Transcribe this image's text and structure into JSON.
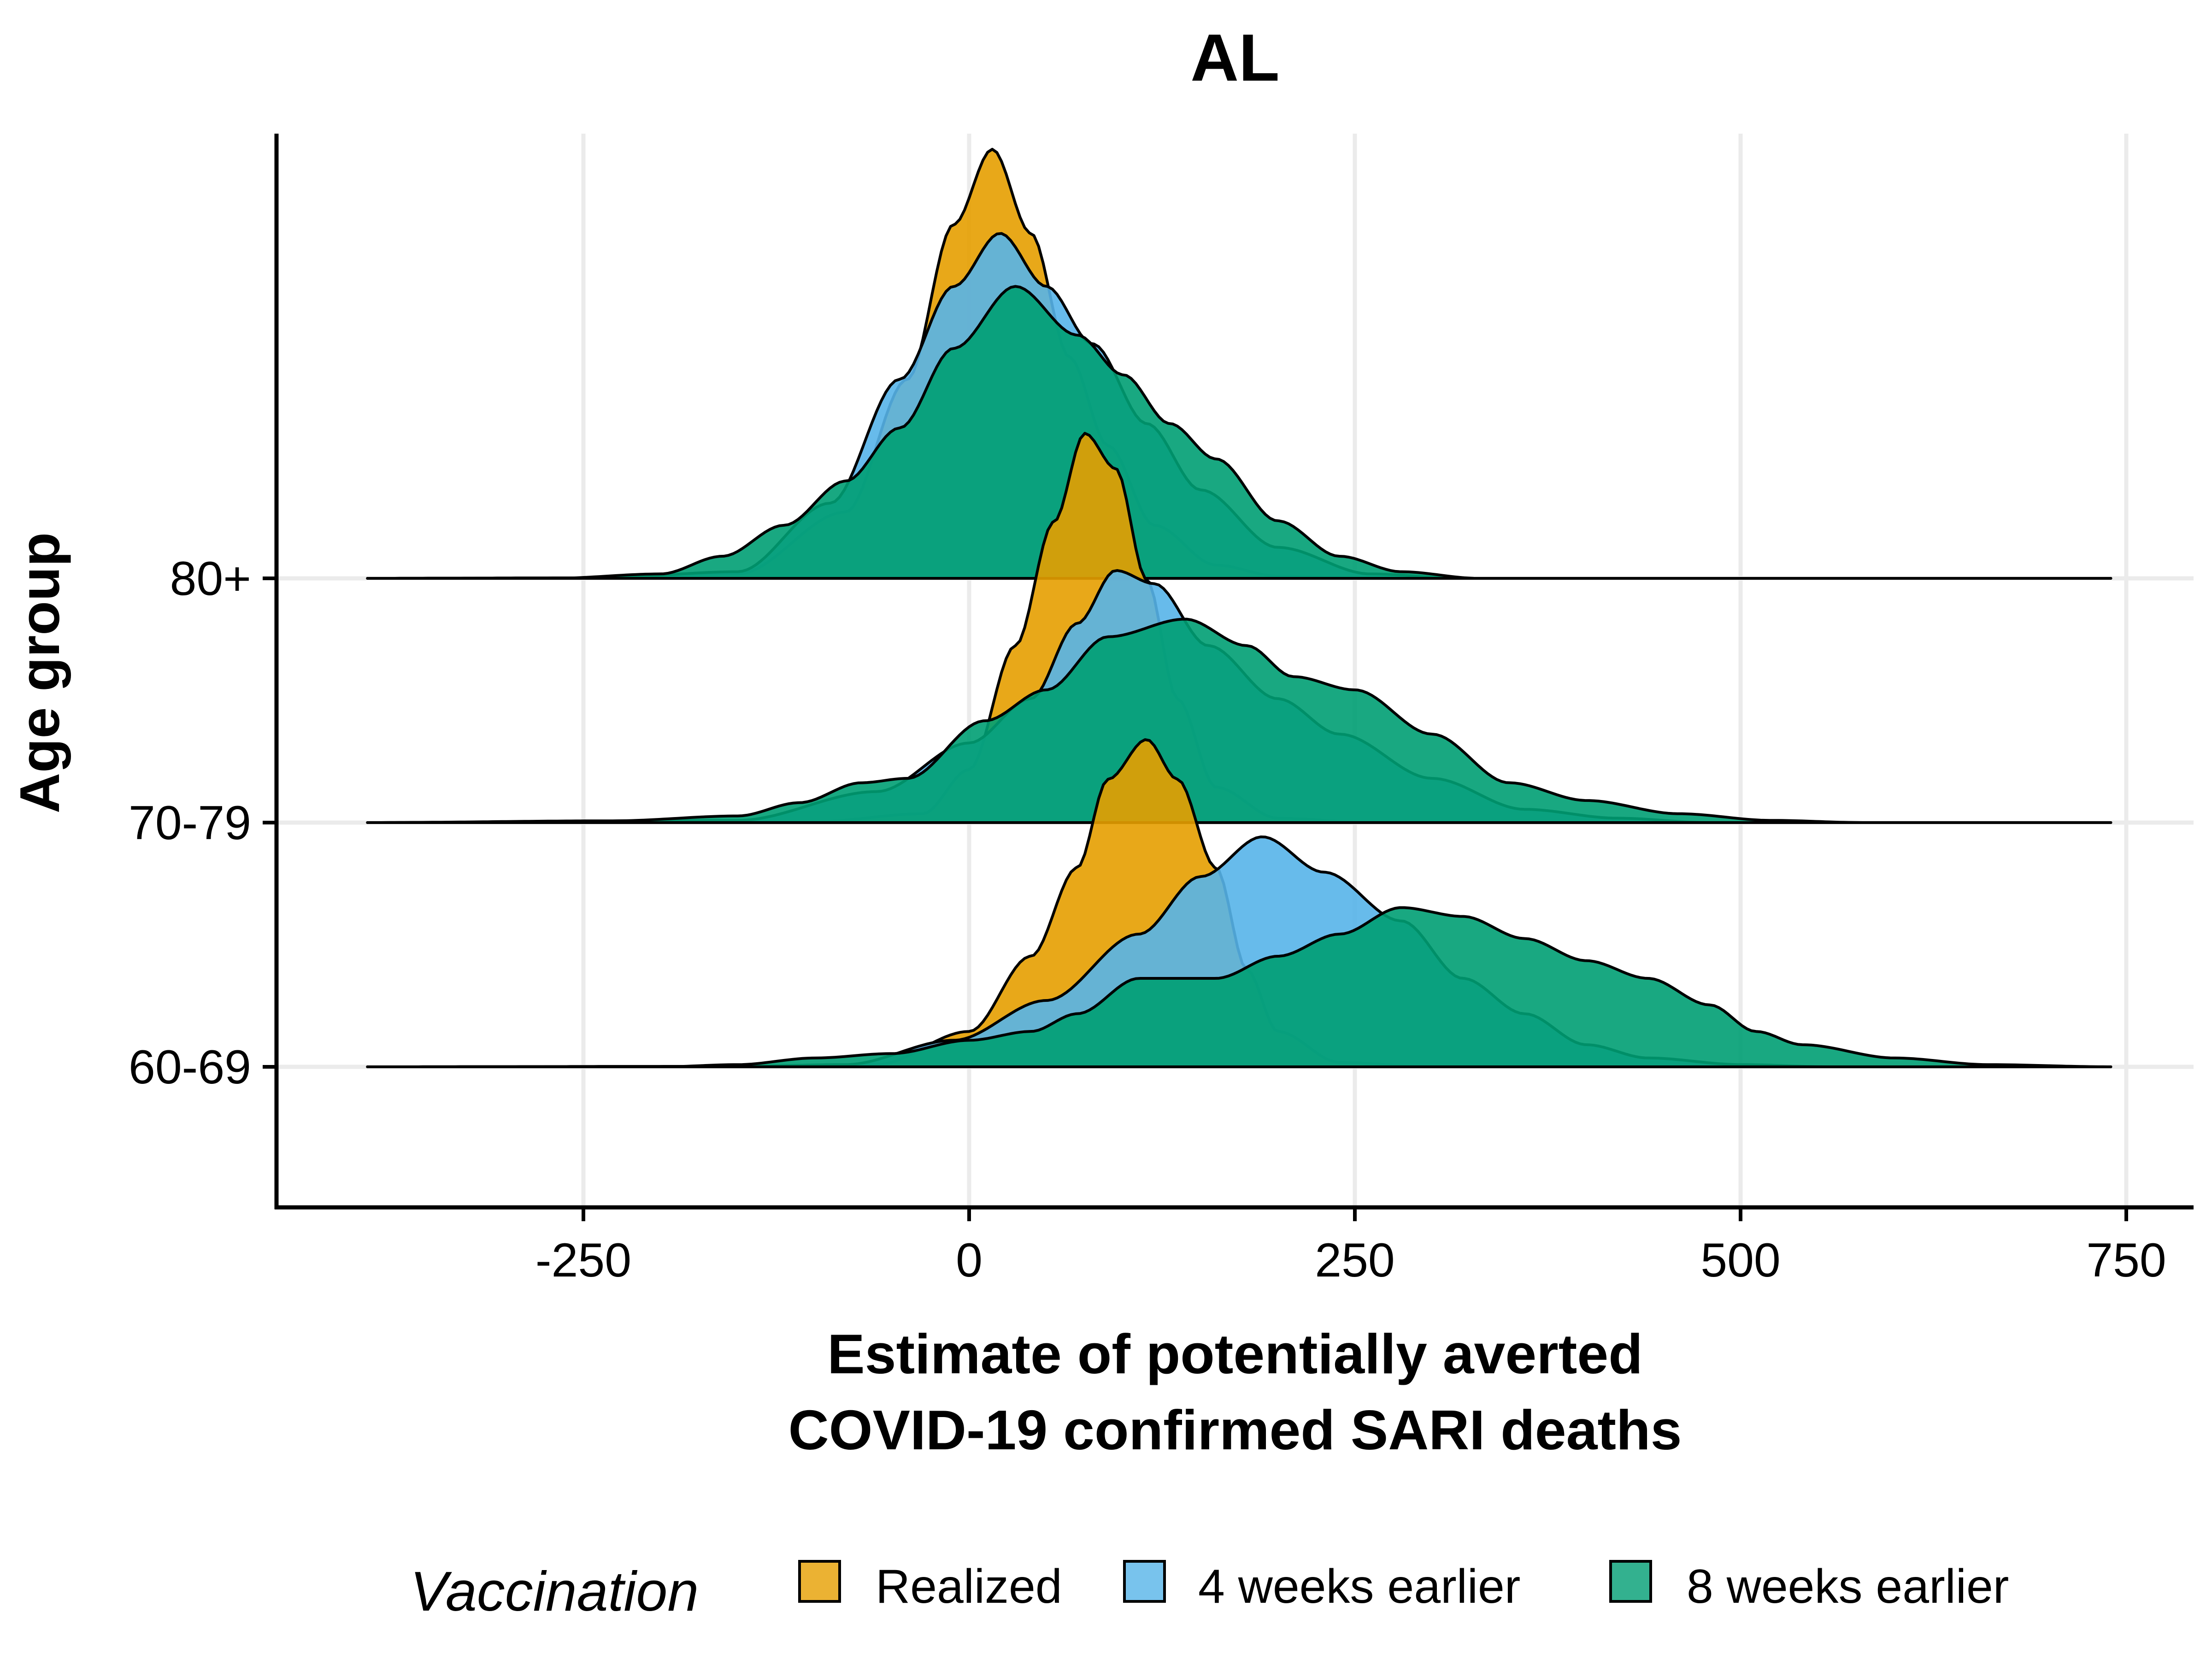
{
  "chart_data": {
    "type": "ridgeline",
    "title": "AL",
    "xlabel_lines": [
      "Estimate of potentially averted",
      "COVID-19 confirmed SARI deaths"
    ],
    "ylabel": "Age group",
    "x_ticks": [
      -250,
      0,
      250,
      500,
      750
    ],
    "x_tick_labels": [
      "-250",
      "0",
      "250",
      "500",
      "750"
    ],
    "xlim": [
      -450,
      790
    ],
    "density_range": [
      -390,
      740
    ],
    "categories": [
      "60-69",
      "70-79",
      "80+"
    ],
    "grid": true,
    "legend": {
      "title": "Vaccination",
      "position": "bottom",
      "items": [
        {
          "label": "Realized",
          "color": "#E69F00"
        },
        {
          "label": "4 weeks earlier",
          "color": "#56B4E9"
        },
        {
          "label": "8 weeks earlier",
          "color": "#009E73"
        }
      ]
    },
    "series": [
      {
        "name": "Realized",
        "color": "#E69F00",
        "ridges": [
          {
            "group": "60-69",
            "points": [
              [
                -390,
                0
              ],
              [
                -150,
                0.001
              ],
              [
                -60,
                0.005
              ],
              [
                0,
                0.08
              ],
              [
                40,
                0.25
              ],
              [
                70,
                0.45
              ],
              [
                90,
                0.65
              ],
              [
                115,
                0.74
              ],
              [
                135,
                0.65
              ],
              [
                160,
                0.45
              ],
              [
                180,
                0.22
              ],
              [
                200,
                0.08
              ],
              [
                240,
                0.01
              ],
              [
                300,
                0
              ],
              [
                740,
                0
              ]
            ]
          },
          {
            "group": "70-79",
            "points": [
              [
                -390,
                0
              ],
              [
                -100,
                0.002
              ],
              [
                -30,
                0.02
              ],
              [
                0,
                0.12
              ],
              [
                30,
                0.4
              ],
              [
                55,
                0.68
              ],
              [
                75,
                0.88
              ],
              [
                95,
                0.8
              ],
              [
                115,
                0.55
              ],
              [
                135,
                0.28
              ],
              [
                160,
                0.08
              ],
              [
                200,
                0.01
              ],
              [
                260,
                0
              ],
              [
                740,
                0
              ]
            ]
          },
          {
            "group": "80+",
            "points": [
              [
                -390,
                0
              ],
              [
                -240,
                0.001
              ],
              [
                -150,
                0.01
              ],
              [
                -80,
                0.15
              ],
              [
                -40,
                0.45
              ],
              [
                -10,
                0.8
              ],
              [
                15,
                0.97
              ],
              [
                40,
                0.78
              ],
              [
                65,
                0.5
              ],
              [
                90,
                0.3
              ],
              [
                120,
                0.12
              ],
              [
                160,
                0.03
              ],
              [
                200,
                0.005
              ],
              [
                260,
                0
              ],
              [
                740,
                0
              ]
            ]
          }
        ]
      },
      {
        "name": "4 weeks earlier",
        "color": "#56B4E9",
        "ridges": [
          {
            "group": "60-69",
            "points": [
              [
                -390,
                0
              ],
              [
                -150,
                0.001
              ],
              [
                -80,
                0.005
              ],
              [
                -10,
                0.06
              ],
              [
                50,
                0.15
              ],
              [
                110,
                0.3
              ],
              [
                150,
                0.43
              ],
              [
                190,
                0.52
              ],
              [
                230,
                0.44
              ],
              [
                280,
                0.33
              ],
              [
                320,
                0.2
              ],
              [
                360,
                0.12
              ],
              [
                400,
                0.05
              ],
              [
                440,
                0.02
              ],
              [
                500,
                0.005
              ],
              [
                560,
                0
              ],
              [
                740,
                0
              ]
            ]
          },
          {
            "group": "70-79",
            "points": [
              [
                -390,
                0
              ],
              [
                -150,
                0.005
              ],
              [
                -60,
                0.07
              ],
              [
                0,
                0.18
              ],
              [
                40,
                0.28
              ],
              [
                70,
                0.45
              ],
              [
                95,
                0.57
              ],
              [
                120,
                0.54
              ],
              [
                155,
                0.4
              ],
              [
                200,
                0.28
              ],
              [
                240,
                0.2
              ],
              [
                300,
                0.1
              ],
              [
                360,
                0.03
              ],
              [
                420,
                0.01
              ],
              [
                480,
                0
              ],
              [
                740,
                0
              ]
            ]
          },
          {
            "group": "80+",
            "points": [
              [
                -390,
                0
              ],
              [
                -240,
                0.001
              ],
              [
                -150,
                0.015
              ],
              [
                -90,
                0.17
              ],
              [
                -45,
                0.45
              ],
              [
                -10,
                0.66
              ],
              [
                20,
                0.78
              ],
              [
                50,
                0.66
              ],
              [
                80,
                0.53
              ],
              [
                115,
                0.35
              ],
              [
                150,
                0.2
              ],
              [
                200,
                0.07
              ],
              [
                260,
                0.01
              ],
              [
                320,
                0
              ],
              [
                740,
                0
              ]
            ]
          }
        ]
      },
      {
        "name": "8 weeks earlier",
        "color": "#009E73",
        "ridges": [
          {
            "group": "60-69",
            "points": [
              [
                -390,
                0
              ],
              [
                -200,
                0
              ],
              [
                -150,
                0.005
              ],
              [
                -100,
                0.02
              ],
              [
                -50,
                0.03
              ],
              [
                0,
                0.06
              ],
              [
                40,
                0.08
              ],
              [
                70,
                0.12
              ],
              [
                110,
                0.2
              ],
              [
                160,
                0.2
              ],
              [
                200,
                0.25
              ],
              [
                240,
                0.3
              ],
              [
                280,
                0.36
              ],
              [
                320,
                0.34
              ],
              [
                360,
                0.29
              ],
              [
                400,
                0.24
              ],
              [
                440,
                0.2
              ],
              [
                480,
                0.14
              ],
              [
                510,
                0.08
              ],
              [
                540,
                0.05
              ],
              [
                600,
                0.02
              ],
              [
                660,
                0.005
              ],
              [
                740,
                0
              ]
            ]
          },
          {
            "group": "70-79",
            "points": [
              [
                -390,
                0
              ],
              [
                -230,
                0.004
              ],
              [
                -150,
                0.015
              ],
              [
                -110,
                0.045
              ],
              [
                -70,
                0.09
              ],
              [
                -40,
                0.1
              ],
              [
                10,
                0.23
              ],
              [
                50,
                0.3
              ],
              [
                90,
                0.42
              ],
              [
                140,
                0.46
              ],
              [
                180,
                0.4
              ],
              [
                210,
                0.33
              ],
              [
                250,
                0.3
              ],
              [
                300,
                0.2
              ],
              [
                350,
                0.09
              ],
              [
                400,
                0.05
              ],
              [
                460,
                0.02
              ],
              [
                520,
                0.005
              ],
              [
                580,
                0
              ],
              [
                740,
                0
              ]
            ]
          },
          {
            "group": "80+",
            "points": [
              [
                -390,
                0
              ],
              [
                -270,
                0
              ],
              [
                -200,
                0.01
              ],
              [
                -160,
                0.05
              ],
              [
                -120,
                0.12
              ],
              [
                -80,
                0.22
              ],
              [
                -45,
                0.34
              ],
              [
                -10,
                0.52
              ],
              [
                30,
                0.66
              ],
              [
                70,
                0.55
              ],
              [
                100,
                0.46
              ],
              [
                130,
                0.35
              ],
              [
                160,
                0.27
              ],
              [
                200,
                0.13
              ],
              [
                240,
                0.05
              ],
              [
                280,
                0.015
              ],
              [
                330,
                0
              ],
              [
                740,
                0
              ]
            ]
          }
        ]
      }
    ]
  }
}
